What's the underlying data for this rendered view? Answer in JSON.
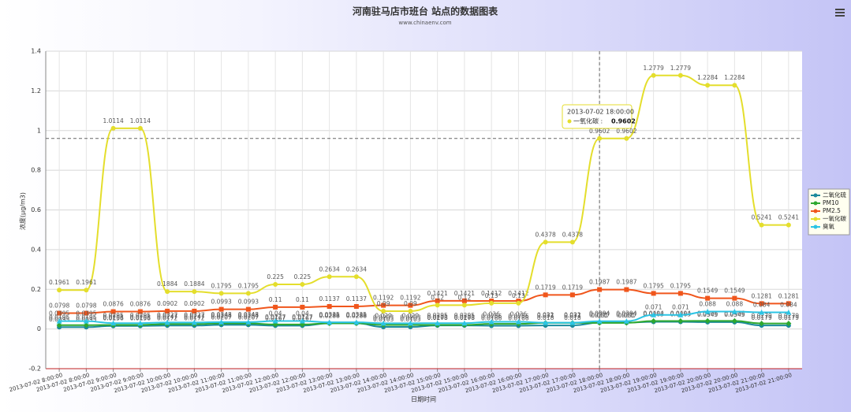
{
  "chart_data": {
    "type": "line",
    "title": "河南驻马店市班台 站点的数据图表",
    "subtitle": "www.chinaenv.com",
    "y_label": "浓度(μg/m3)",
    "x_label": "日期时间",
    "categories": [
      "2013-07-02 8:00:00",
      "2013-07-02 8:00:00",
      "2013-07-02 9:00:00",
      "2013-07-02 9:00:00",
      "2013-07-02 10:00:00",
      "2013-07-02 10:00:00",
      "2013-07-02 11:00:00",
      "2013-07-02 11:00:00",
      "2013-07-02 12:00:00",
      "2013-07-02 12:00:00",
      "2013-07-02 13:00:00",
      "2013-07-02 13:00:00",
      "2013-07-02 14:00:00",
      "2013-07-02 14:00:00",
      "2013-07-02 15:00:00",
      "2013-07-02 15:00:00",
      "2013-07-02 16:00:00",
      "2013-07-02 16:00:00",
      "2013-07-02 17:00:00",
      "2013-07-02 17:00:00",
      "2013-07-02 18:00:00",
      "2013-07-02 18:00:00",
      "2013-07-02 19:00:00",
      "2013-07-02 19:00:00",
      "2013-07-02 20:00:00",
      "2013-07-02 20:00:00",
      "2013-07-02 21:00:00",
      "2013-07-02 21:00:00"
    ],
    "series": [
      {
        "name": "二氧化硫",
        "color": "#1b8a9c",
        "marker": "circle",
        "values": [
          0.0095,
          0.0095,
          0.0156,
          0.0156,
          0.0172,
          0.0172,
          0.0207,
          0.0207,
          0.0167,
          0.0167,
          0.0286,
          0.0286,
          0.0103,
          0.0103,
          0.0178,
          0.0178,
          0.0166,
          0.0166,
          0.018,
          0.018,
          0.0317,
          0.0317,
          0.0363,
          0.0363,
          0.0345,
          0.0345,
          0.0179,
          0.0179
        ]
      },
      {
        "name": "PM10",
        "color": "#2ea82e",
        "marker": "diamond",
        "values": [
          0.0195,
          0.0195,
          0.0205,
          0.0205,
          0.0247,
          0.0247,
          0.0284,
          0.0284,
          0.0227,
          0.0227,
          0.0288,
          0.0288,
          0.0203,
          0.0203,
          0.0203,
          0.0203,
          0.0256,
          0.0256,
          0.031,
          0.031,
          0.031,
          0.031,
          0.0404,
          0.0404,
          0.0406,
          0.0406,
          0.0279,
          0.0279
        ]
      },
      {
        "name": "PM2.5",
        "color": "#f0561c",
        "marker": "square",
        "values": [
          0.0798,
          0.0798,
          0.0876,
          0.0876,
          0.0902,
          0.0902,
          0.0993,
          0.0993,
          0.11,
          0.11,
          0.1137,
          0.1137,
          0.1192,
          0.1192,
          0.1421,
          0.1421,
          0.1412,
          0.1412,
          0.1719,
          0.1719,
          0.1987,
          0.1987,
          0.1795,
          0.1795,
          0.1549,
          0.1549,
          0.1281,
          0.1281
        ]
      },
      {
        "name": "一氧化碳",
        "color": "#e4de2c",
        "marker": "circle",
        "values": [
          0.1961,
          0.1961,
          1.0114,
          1.0114,
          0.1884,
          0.1884,
          0.1795,
          0.1795,
          0.225,
          0.225,
          0.2634,
          0.2634,
          0.09,
          0.09,
          0.12,
          0.12,
          0.13,
          0.13,
          0.4378,
          0.4378,
          0.9602,
          0.9602,
          1.2779,
          1.2779,
          1.2284,
          1.2284,
          0.5241,
          0.5241
        ]
      },
      {
        "name": "臭氧",
        "color": "#2cc4e4",
        "marker": "triangle",
        "values": [
          0.0395,
          0.0395,
          0.0295,
          0.0295,
          0.0327,
          0.0327,
          0.0348,
          0.0348,
          0.04,
          0.04,
          0.0335,
          0.0335,
          0.029,
          0.029,
          0.0295,
          0.0295,
          0.036,
          0.036,
          0.032,
          0.032,
          0.0394,
          0.0394,
          0.071,
          0.071,
          0.088,
          0.088,
          0.084,
          0.084
        ]
      }
    ],
    "ylim": [
      -0.2,
      1.4
    ],
    "yticks": [
      -0.2,
      0,
      0.2,
      0.4,
      0.6,
      0.8,
      1,
      1.2,
      1.4
    ],
    "grid": true,
    "legend": "right",
    "tooltip": {
      "title": "2013-07-02 18:00:00",
      "label": "一氧化碳 :",
      "value": 0.9602
    }
  }
}
